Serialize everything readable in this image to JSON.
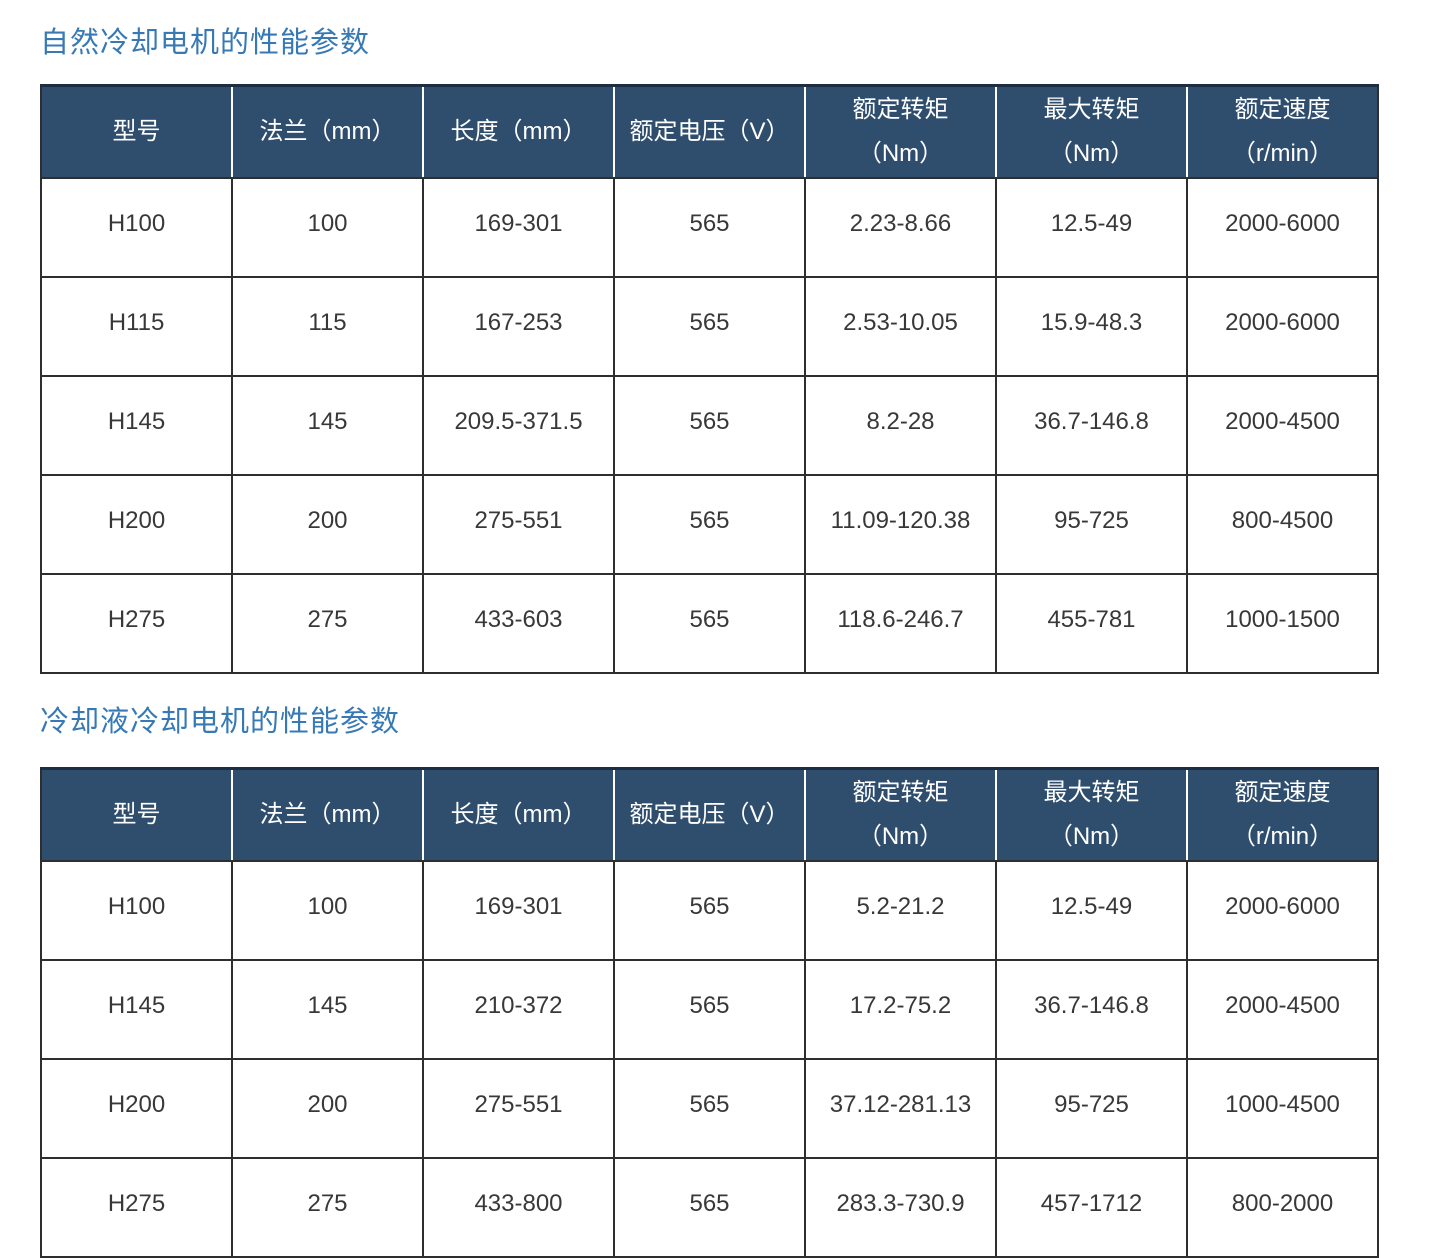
{
  "colors": {
    "title_blue": "#3779b5",
    "header_bg": "#2f4e6e",
    "header_text": "#ffffff",
    "grid_border": "#2e2e2e",
    "body_text": "#383838"
  },
  "columns": [
    {
      "l1": "型号",
      "l2": ""
    },
    {
      "l1": "法兰（mm）",
      "l2": ""
    },
    {
      "l1": "长度（mm）",
      "l2": ""
    },
    {
      "l1": "额定电压（V）",
      "l2": ""
    },
    {
      "l1": "额定转矩",
      "l2": "（Nm）"
    },
    {
      "l1": "最大转矩",
      "l2": "（Nm）"
    },
    {
      "l1": "额定速度",
      "l2": "（r/min）"
    }
  ],
  "sections": [
    {
      "title": "自然冷却电机的性能参数",
      "rows": [
        [
          "H100",
          "100",
          "169-301",
          "565",
          "2.23-8.66",
          "12.5-49",
          "2000-6000"
        ],
        [
          "H115",
          "115",
          "167-253",
          "565",
          "2.53-10.05",
          "15.9-48.3",
          "2000-6000"
        ],
        [
          "H145",
          "145",
          "209.5-371.5",
          "565",
          "8.2-28",
          "36.7-146.8",
          "2000-4500"
        ],
        [
          "H200",
          "200",
          "275-551",
          "565",
          "11.09-120.38",
          "95-725",
          "800-4500"
        ],
        [
          "H275",
          "275",
          "433-603",
          "565",
          "118.6-246.7",
          "455-781",
          "1000-1500"
        ]
      ]
    },
    {
      "title": "冷却液冷却电机的性能参数",
      "rows": [
        [
          "H100",
          "100",
          "169-301",
          "565",
          "5.2-21.2",
          "12.5-49",
          "2000-6000"
        ],
        [
          "H145",
          "145",
          "210-372",
          "565",
          "17.2-75.2",
          "36.7-146.8",
          "2000-4500"
        ],
        [
          "H200",
          "200",
          "275-551",
          "565",
          "37.12-281.13",
          "95-725",
          "1000-4500"
        ],
        [
          "H275",
          "275",
          "433-800",
          "565",
          "283.3-730.9",
          "457-1712",
          "800-2000"
        ]
      ]
    }
  ]
}
